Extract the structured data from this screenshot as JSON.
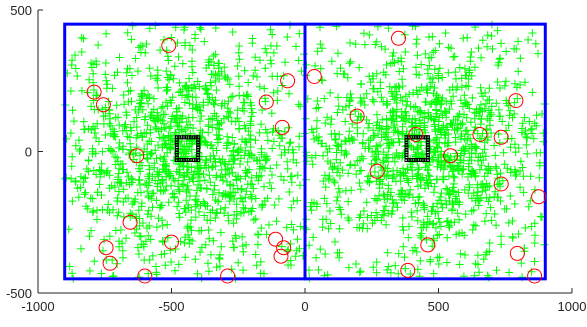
{
  "chart_data": {
    "type": "scatter",
    "title": "",
    "xlabel": "",
    "ylabel": "",
    "xlim": [
      -1000,
      1000
    ],
    "ylim": [
      -500,
      500
    ],
    "xticks": [
      -1000,
      -500,
      0,
      500,
      1000
    ],
    "yticks": [
      -500,
      0,
      500
    ],
    "xtick_labels": [
      "-1000",
      "-500",
      "0",
      "500",
      "1000"
    ],
    "ytick_labels": [
      "-500",
      "0",
      "500"
    ],
    "grid": false,
    "legend": "none",
    "colors": {
      "cross_markers": "#00ff00",
      "circle_markers": "#ff0000",
      "square_markers": "#000000",
      "boundary": "#0000ff",
      "axes": "#262626"
    },
    "boundary_rectangles": [
      {
        "x": [
          -900,
          0
        ],
        "y": [
          -450,
          450
        ]
      },
      {
        "x": [
          0,
          900
        ],
        "y": [
          -450,
          450
        ]
      }
    ],
    "cross_clusters": [
      {
        "center": [
          -450,
          0
        ],
        "count": 900,
        "spread": [
          230,
          170
        ],
        "xlim": [
          -900,
          0
        ],
        "ylim": [
          -450,
          450
        ]
      },
      {
        "center": [
          450,
          0
        ],
        "count": 900,
        "spread": [
          230,
          170
        ],
        "xlim": [
          0,
          900
        ],
        "ylim": [
          -450,
          450
        ]
      },
      {
        "center": [
          -450,
          0
        ],
        "count": 300,
        "spread": [
          900,
          900
        ],
        "xlim": [
          -900,
          0
        ],
        "ylim": [
          -450,
          450
        ]
      },
      {
        "center": [
          450,
          0
        ],
        "count": 300,
        "spread": [
          900,
          900
        ],
        "xlim": [
          0,
          900
        ],
        "ylim": [
          -450,
          450
        ]
      }
    ],
    "circle_points": [
      [
        -790,
        210
      ],
      [
        -755,
        165
      ],
      [
        -510,
        375
      ],
      [
        -145,
        175
      ],
      [
        -65,
        250
      ],
      [
        -85,
        85
      ],
      [
        -630,
        -15
      ],
      [
        -655,
        -250
      ],
      [
        -745,
        -340
      ],
      [
        -730,
        -395
      ],
      [
        -500,
        -320
      ],
      [
        -600,
        -440
      ],
      [
        -290,
        -440
      ],
      [
        -110,
        -310
      ],
      [
        -80,
        -340
      ],
      [
        -90,
        -370
      ],
      [
        35,
        265
      ],
      [
        195,
        125
      ],
      [
        350,
        400
      ],
      [
        270,
        -70
      ],
      [
        415,
        60
      ],
      [
        545,
        -15
      ],
      [
        655,
        60
      ],
      [
        790,
        180
      ],
      [
        735,
        50
      ],
      [
        735,
        -115
      ],
      [
        875,
        -160
      ],
      [
        460,
        -330
      ],
      [
        385,
        -420
      ],
      [
        795,
        -360
      ],
      [
        860,
        -440
      ]
    ],
    "square_clusters": [
      {
        "center": [
          -440,
          10
        ],
        "half_size": 40
      },
      {
        "center": [
          420,
          10
        ],
        "half_size": 40
      }
    ]
  }
}
